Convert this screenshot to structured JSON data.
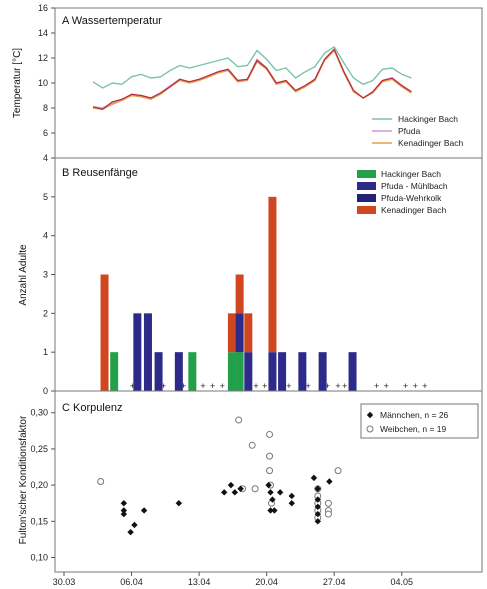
{
  "chart_data": [
    {
      "type": "line",
      "panel_title": "A Wassertemperatur",
      "ylabel": "Temperatur [°C]",
      "ylim": [
        4,
        16
      ],
      "yticks": [
        4,
        6,
        8,
        10,
        12,
        14,
        16
      ],
      "x_unit": "days from 30.03",
      "legend_position": "bottom-right",
      "series": [
        {
          "name": "Hackinger Bach",
          "color": "#7cc4a8",
          "x": [
            3,
            4,
            5,
            6,
            7,
            8,
            9,
            10,
            11,
            12,
            13,
            14,
            15,
            16,
            17,
            18,
            19,
            20,
            21,
            22,
            23,
            24,
            25,
            26,
            27,
            28,
            29,
            30,
            31,
            32,
            33,
            34,
            35,
            36
          ],
          "y": [
            10.1,
            9.6,
            10.0,
            9.9,
            10.5,
            10.7,
            10.4,
            10.5,
            11.0,
            11.4,
            11.2,
            11.4,
            11.6,
            11.8,
            12.0,
            11.3,
            11.4,
            12.6,
            11.9,
            11.0,
            11.2,
            10.4,
            10.9,
            11.3,
            12.4,
            12.9,
            11.6,
            10.4,
            9.9,
            10.2,
            11.1,
            11.2,
            10.7,
            10.4
          ]
        },
        {
          "name": "Pfuda",
          "color": "#c99ad9",
          "x": [
            3,
            4,
            5,
            6,
            7,
            8,
            9,
            10,
            11,
            12,
            13,
            14,
            15,
            16,
            17,
            18,
            19,
            20,
            21,
            22,
            23,
            24,
            25,
            26,
            27,
            28,
            29,
            30,
            31,
            32,
            33,
            34,
            35,
            36
          ],
          "y": [
            8.1,
            8.0,
            8.4,
            8.7,
            9.0,
            9.0,
            8.8,
            9.2,
            9.8,
            10.3,
            10.1,
            10.3,
            10.6,
            10.9,
            11.1,
            10.2,
            10.3,
            11.9,
            11.2,
            10.0,
            10.2,
            9.4,
            9.8,
            10.3,
            11.9,
            12.7,
            10.9,
            9.4,
            8.8,
            9.3,
            10.2,
            10.4,
            9.8,
            9.3
          ]
        },
        {
          "name": "Kenadinger Bach",
          "color": "#e3a24d",
          "x": [
            3,
            4,
            5,
            6,
            7,
            8,
            9,
            10,
            11,
            12,
            13,
            14,
            15,
            16,
            17,
            18,
            19,
            20,
            21,
            22,
            23,
            24,
            25,
            26,
            27,
            28,
            29,
            30,
            31,
            32,
            33,
            34,
            35,
            36
          ],
          "y": [
            8.0,
            7.9,
            8.3,
            8.6,
            9.0,
            8.9,
            8.7,
            9.1,
            9.7,
            10.2,
            10.0,
            10.2,
            10.5,
            10.8,
            11.0,
            10.1,
            10.2,
            11.7,
            11.1,
            9.9,
            10.1,
            9.3,
            9.7,
            10.2,
            11.8,
            12.6,
            10.8,
            9.3,
            8.8,
            9.2,
            10.1,
            10.3,
            9.7,
            9.2
          ]
        }
      ],
      "extra_lines": [
        {
          "color": "#b8283a",
          "x": [
            3,
            4,
            5,
            6,
            7,
            8,
            9,
            10,
            11,
            12,
            13,
            14,
            15,
            16,
            17,
            18,
            19,
            20,
            21,
            22,
            23,
            24,
            25,
            26,
            27,
            28,
            29,
            30,
            31,
            32,
            33,
            34,
            35,
            36
          ],
          "y": [
            8.1,
            7.9,
            8.5,
            8.7,
            9.1,
            9.0,
            8.8,
            9.2,
            9.7,
            10.3,
            10.1,
            10.3,
            10.6,
            10.9,
            11.1,
            10.2,
            10.3,
            11.8,
            11.2,
            10.0,
            10.2,
            9.4,
            9.8,
            10.3,
            11.9,
            12.7,
            10.9,
            9.4,
            8.8,
            9.3,
            10.2,
            10.4,
            9.8,
            9.3
          ]
        }
      ]
    },
    {
      "type": "bar",
      "stacked": true,
      "panel_title": "B Reusenfänge",
      "ylabel": "Anzahl Adulte",
      "ylim": [
        0,
        6
      ],
      "yticks": [
        0,
        1,
        2,
        3,
        4,
        5
      ],
      "legend_position": "top-right",
      "series": [
        {
          "name": "Hackinger Bach",
          "color": "#23a04a"
        },
        {
          "name": "Pfuda - Mühlbach",
          "color": "#2d2a8a"
        },
        {
          "name": "Pfuda-Wehrkolk",
          "color": "#232178"
        },
        {
          "name": "Kenadinger Bach",
          "color": "#d0461f"
        }
      ],
      "bars": [
        {
          "x": 4.2,
          "segments": [
            {
              "series": 3,
              "value": 3
            }
          ]
        },
        {
          "x": 5.2,
          "segments": [
            {
              "series": 0,
              "value": 1
            }
          ]
        },
        {
          "x": 7.6,
          "segments": [
            {
              "series": 1,
              "value": 2
            }
          ]
        },
        {
          "x": 8.7,
          "segments": [
            {
              "series": 1,
              "value": 2
            }
          ]
        },
        {
          "x": 9.8,
          "segments": [
            {
              "series": 1,
              "value": 1
            }
          ]
        },
        {
          "x": 11.9,
          "segments": [
            {
              "series": 1,
              "value": 1
            }
          ]
        },
        {
          "x": 13.3,
          "segments": [
            {
              "series": 0,
              "value": 1
            }
          ]
        },
        {
          "x": 17.4,
          "segments": [
            {
              "series": 0,
              "value": 1
            },
            {
              "series": 3,
              "value": 1
            }
          ]
        },
        {
          "x": 18.2,
          "segments": [
            {
              "series": 0,
              "value": 1
            },
            {
              "series": 1,
              "value": 1
            },
            {
              "series": 3,
              "value": 1
            }
          ]
        },
        {
          "x": 19.1,
          "segments": [
            {
              "series": 1,
              "value": 1
            },
            {
              "series": 3,
              "value": 1
            }
          ]
        },
        {
          "x": 21.6,
          "segments": [
            {
              "series": 1,
              "value": 1
            },
            {
              "series": 3,
              "value": 4
            }
          ]
        },
        {
          "x": 22.6,
          "segments": [
            {
              "series": 1,
              "value": 1
            }
          ]
        },
        {
          "x": 24.7,
          "segments": [
            {
              "series": 1,
              "value": 1
            }
          ]
        },
        {
          "x": 26.8,
          "segments": [
            {
              "series": 1,
              "value": 1
            }
          ]
        },
        {
          "x": 29.9,
          "segments": [
            {
              "series": 1,
              "value": 1
            }
          ]
        }
      ],
      "zero_markers_x": [
        7.1,
        10.3,
        12.4,
        14.4,
        15.4,
        16.4,
        19.9,
        20.8,
        23.3,
        25.3,
        27.3,
        28.4,
        29.1,
        32.4,
        33.4,
        35.4,
        36.4,
        37.4
      ]
    },
    {
      "type": "scatter",
      "panel_title": "C Korpulenz",
      "ylabel": "Fulton'scher Konditionsfaktor",
      "ylim": [
        0.08,
        0.33
      ],
      "yticks": [
        0.1,
        0.15,
        0.2,
        0.25,
        0.3
      ],
      "ytick_labels": [
        "0,10",
        "0,15",
        "0,20",
        "0,25",
        "0,30"
      ],
      "xlim": [
        0,
        40
      ],
      "xticks": [
        0,
        7,
        14,
        21,
        28,
        35
      ],
      "xtick_labels": [
        "30.03",
        "06.04",
        "13.04",
        "20.04",
        "27.04",
        "04.05"
      ],
      "legend_position": "top-right",
      "series": [
        {
          "name": "Männchen, n = 26",
          "marker": "filled-diamond",
          "color": "#111111",
          "x": [
            6.2,
            6.2,
            6.2,
            6.9,
            7.3,
            8.3,
            11.9,
            16.6,
            17.3,
            17.7,
            18.3,
            21.2,
            21.4,
            21.6,
            21.4,
            21.8,
            22.4,
            23.6,
            23.6,
            25.9,
            26.3,
            26.3,
            26.3,
            26.3,
            26.3,
            27.5
          ],
          "y": [
            0.175,
            0.165,
            0.16,
            0.135,
            0.145,
            0.165,
            0.175,
            0.19,
            0.2,
            0.19,
            0.195,
            0.2,
            0.19,
            0.18,
            0.165,
            0.165,
            0.19,
            0.185,
            0.175,
            0.21,
            0.195,
            0.18,
            0.17,
            0.16,
            0.15,
            0.205
          ]
        },
        {
          "name": "Weibchen, n = 19",
          "marker": "open-circle",
          "color": "#777777",
          "x": [
            3.8,
            18.1,
            19.5,
            19.8,
            21.3,
            21.3,
            21.3,
            21.4,
            21.5,
            26.3,
            26.3,
            26.3,
            26.3,
            26.3,
            27.4,
            27.4,
            27.4,
            28.4,
            18.5
          ],
          "y": [
            0.205,
            0.29,
            0.255,
            0.195,
            0.27,
            0.24,
            0.22,
            0.2,
            0.175,
            0.195,
            0.185,
            0.175,
            0.165,
            0.155,
            0.175,
            0.165,
            0.16,
            0.22,
            0.195
          ]
        }
      ]
    }
  ]
}
